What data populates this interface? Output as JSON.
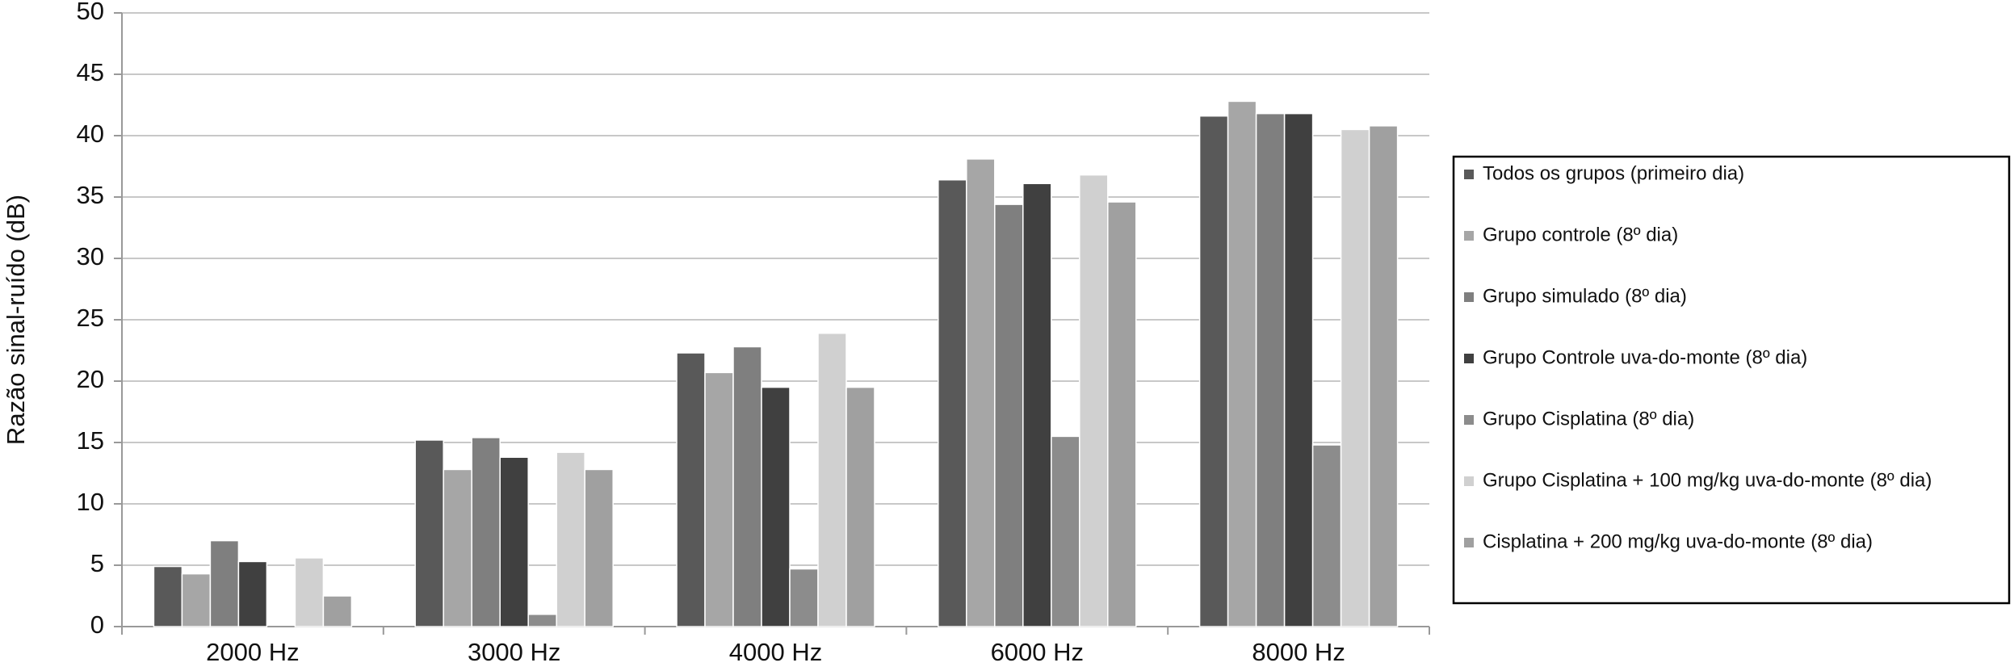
{
  "chart_data": {
    "type": "bar",
    "y_label": "Razão sinal-ruído (dB)",
    "categories": [
      "2000 Hz",
      "3000 Hz",
      "4000 Hz",
      "6000 Hz",
      "8000 Hz"
    ],
    "series": [
      {
        "name": "Todos os grupos (primeiro dia)",
        "color": "#595959",
        "values": [
          4.9,
          15.2,
          22.3,
          36.4,
          41.6
        ]
      },
      {
        "name": "Grupo controle (8º dia)",
        "color": "#a6a6a6",
        "values": [
          4.3,
          12.8,
          20.7,
          38.1,
          42.8
        ]
      },
      {
        "name": "Grupo simulado (8º dia)",
        "color": "#7f7f7f",
        "values": [
          7.0,
          15.4,
          22.8,
          34.4,
          41.8
        ]
      },
      {
        "name": "Grupo Controle uva-do-monte (8º dia)",
        "color": "#404040",
        "values": [
          5.3,
          13.8,
          19.5,
          36.1,
          41.8
        ]
      },
      {
        "name": "Grupo Cisplatina (8º dia)",
        "color": "#8c8c8c",
        "values": [
          0,
          1.0,
          4.7,
          15.5,
          14.8
        ]
      },
      {
        "name": "Grupo Cisplatina + 100 mg/kg uva-do-monte (8º dia)",
        "color": "#d0d0d0",
        "values": [
          5.6,
          14.2,
          23.9,
          36.8,
          40.5
        ]
      },
      {
        "name": "Cisplatina + 200 mg/kg uva-do-monte (8º dia)",
        "color": "#a0a0a0",
        "values": [
          2.5,
          12.8,
          19.5,
          34.6,
          40.8
        ]
      }
    ],
    "ylim": [
      0,
      50
    ],
    "yticks": [
      0,
      5,
      10,
      15,
      20,
      25,
      30,
      35,
      40,
      45,
      50
    ],
    "grid": true,
    "legend": "right"
  }
}
